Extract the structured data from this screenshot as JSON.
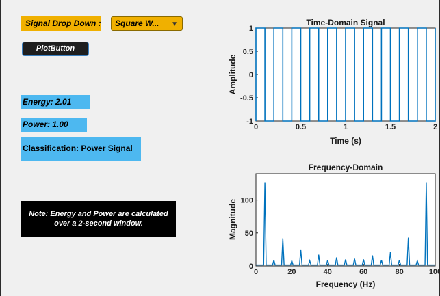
{
  "controls": {
    "signal_label": "Signal Drop Down :",
    "signal_selected": "Square W...",
    "plot_button": "PlotButton"
  },
  "results": {
    "energy": "Energy: 2.01",
    "power": "Power: 1.00",
    "classification": "Classification: Power Signal"
  },
  "note": {
    "line1": "Note: Energy and Power are calculated",
    "line2": "over a 2-second window."
  },
  "colors": {
    "accent_orange": "#f0b000",
    "result_blue": "#4db8f0",
    "plot_line": "#0072bd"
  },
  "chart_data": [
    {
      "type": "line",
      "title": "Time-Domain Signal",
      "xlabel": "Time (s)",
      "ylabel": "Amplitude",
      "xlim": [
        0,
        2
      ],
      "ylim": [
        -1,
        1
      ],
      "xticks": [
        0,
        0.5,
        1,
        1.5,
        2
      ],
      "xtick_labels": [
        "0",
        "0.5",
        "1",
        "1.5",
        "2"
      ],
      "yticks": [
        -1,
        -0.5,
        0,
        0.5,
        1
      ],
      "ytick_labels": [
        "-1",
        "-0.5",
        "0",
        "0.5",
        "1"
      ],
      "grid": false,
      "signal": {
        "kind": "square",
        "frequency_hz": 5,
        "amplitude": 1,
        "duration_s": 2
      }
    },
    {
      "type": "line",
      "title": "Frequency-Domain",
      "xlabel": "Frequency (Hz)",
      "ylabel": "Magnitude",
      "xlim": [
        0,
        100
      ],
      "ylim": [
        0,
        140
      ],
      "xticks": [
        0,
        20,
        40,
        60,
        80,
        100
      ],
      "xtick_labels": [
        "0",
        "20",
        "40",
        "60",
        "80",
        "100"
      ],
      "yticks": [
        0,
        50,
        100
      ],
      "ytick_labels": [
        "0",
        "50",
        "100"
      ],
      "grid": false,
      "peaks": [
        {
          "f": 5,
          "mag": 127
        },
        {
          "f": 10,
          "mag": 9
        },
        {
          "f": 15,
          "mag": 42
        },
        {
          "f": 20,
          "mag": 8
        },
        {
          "f": 25,
          "mag": 25
        },
        {
          "f": 30,
          "mag": 8
        },
        {
          "f": 35,
          "mag": 17
        },
        {
          "f": 40,
          "mag": 9
        },
        {
          "f": 45,
          "mag": 13
        },
        {
          "f": 50,
          "mag": 10
        },
        {
          "f": 55,
          "mag": 11
        },
        {
          "f": 60,
          "mag": 10
        },
        {
          "f": 65,
          "mag": 16
        },
        {
          "f": 70,
          "mag": 9
        },
        {
          "f": 75,
          "mag": 21
        },
        {
          "f": 80,
          "mag": 9
        },
        {
          "f": 85,
          "mag": 43
        },
        {
          "f": 90,
          "mag": 8
        },
        {
          "f": 95,
          "mag": 127
        }
      ]
    }
  ]
}
